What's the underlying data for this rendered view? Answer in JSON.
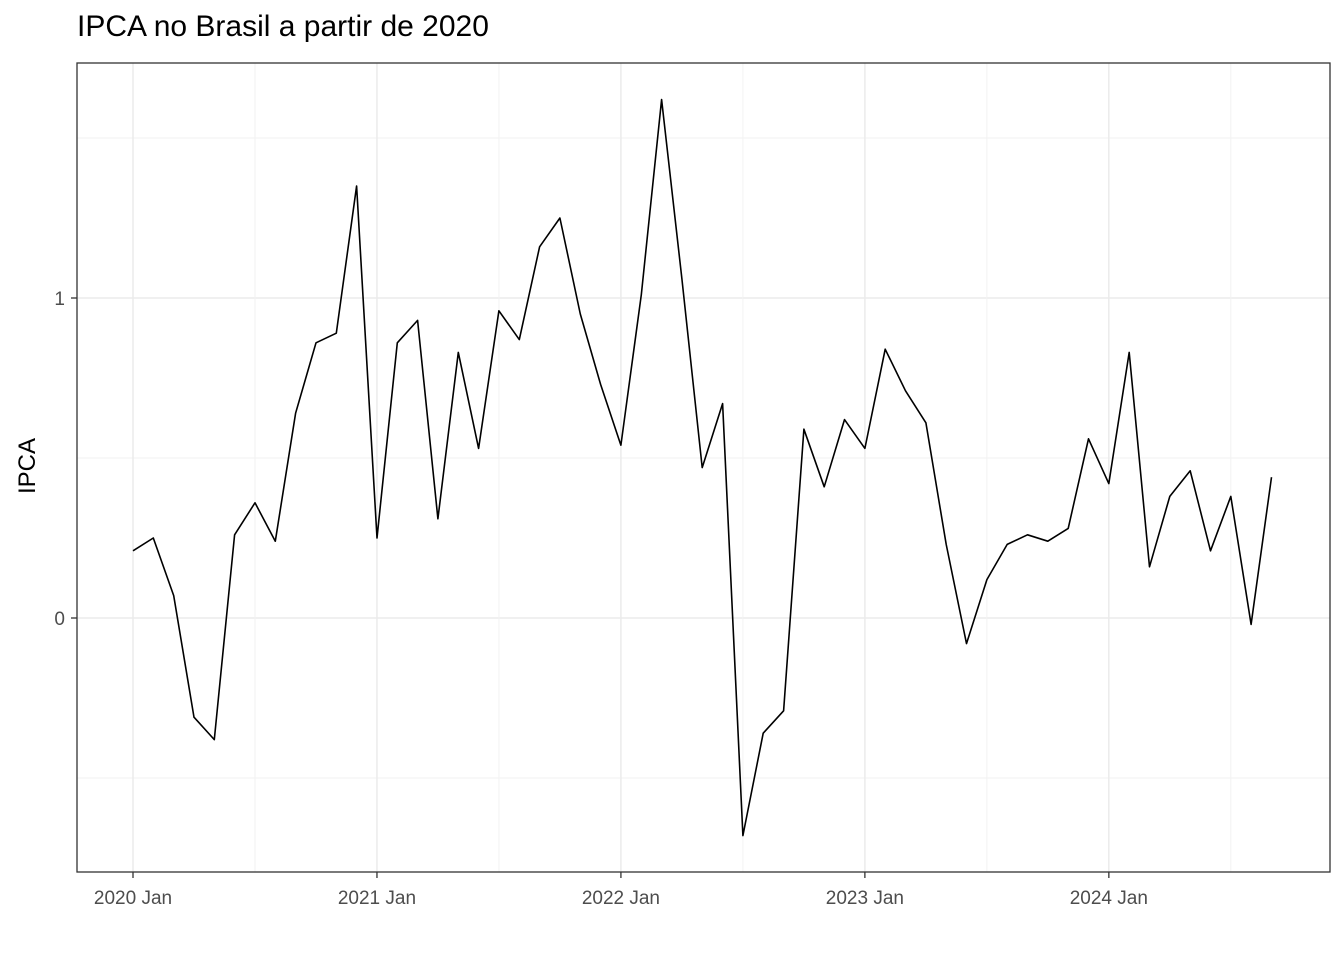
{
  "chart_data": {
    "type": "line",
    "title": "IPCA no Brasil a partir de 2020",
    "xlabel": "",
    "ylabel": "IPCA",
    "x_tick_labels": [
      "2020 Jan",
      "2021 Jan",
      "2022 Jan",
      "2023 Jan",
      "2024 Jan"
    ],
    "y_tick_labels": [
      "0",
      "1"
    ],
    "y_ticks": [
      0,
      1
    ],
    "xlim": [
      "2020-01",
      "2024-09"
    ],
    "ylim": [
      -0.78,
      1.74
    ],
    "grid": true,
    "x": [
      "2020-01",
      "2020-02",
      "2020-03",
      "2020-04",
      "2020-05",
      "2020-06",
      "2020-07",
      "2020-08",
      "2020-09",
      "2020-10",
      "2020-11",
      "2020-12",
      "2021-01",
      "2021-02",
      "2021-03",
      "2021-04",
      "2021-05",
      "2021-06",
      "2021-07",
      "2021-08",
      "2021-09",
      "2021-10",
      "2021-11",
      "2021-12",
      "2022-01",
      "2022-02",
      "2022-03",
      "2022-04",
      "2022-05",
      "2022-06",
      "2022-07",
      "2022-08",
      "2022-09",
      "2022-10",
      "2022-11",
      "2022-12",
      "2023-01",
      "2023-02",
      "2023-03",
      "2023-04",
      "2023-05",
      "2023-06",
      "2023-07",
      "2023-08",
      "2023-09",
      "2023-10",
      "2023-11",
      "2023-12",
      "2024-01",
      "2024-02",
      "2024-03",
      "2024-04",
      "2024-05",
      "2024-06",
      "2024-07",
      "2024-08",
      "2024-09"
    ],
    "series": [
      {
        "color": "#000000",
        "values": [
          0.21,
          0.25,
          0.07,
          -0.31,
          -0.38,
          0.26,
          0.36,
          0.24,
          0.64,
          0.86,
          0.89,
          1.35,
          0.25,
          0.86,
          0.93,
          0.31,
          0.83,
          0.53,
          0.96,
          0.87,
          1.16,
          1.25,
          0.95,
          0.73,
          0.54,
          1.01,
          1.62,
          1.06,
          0.47,
          0.67,
          -0.68,
          -0.36,
          -0.29,
          0.59,
          0.41,
          0.62,
          0.53,
          0.84,
          0.71,
          0.61,
          0.23,
          -0.08,
          0.12,
          0.23,
          0.26,
          0.24,
          0.28,
          0.56,
          0.42,
          0.83,
          0.16,
          0.38,
          0.46,
          0.21,
          0.38,
          -0.02,
          0.44
        ]
      }
    ]
  }
}
